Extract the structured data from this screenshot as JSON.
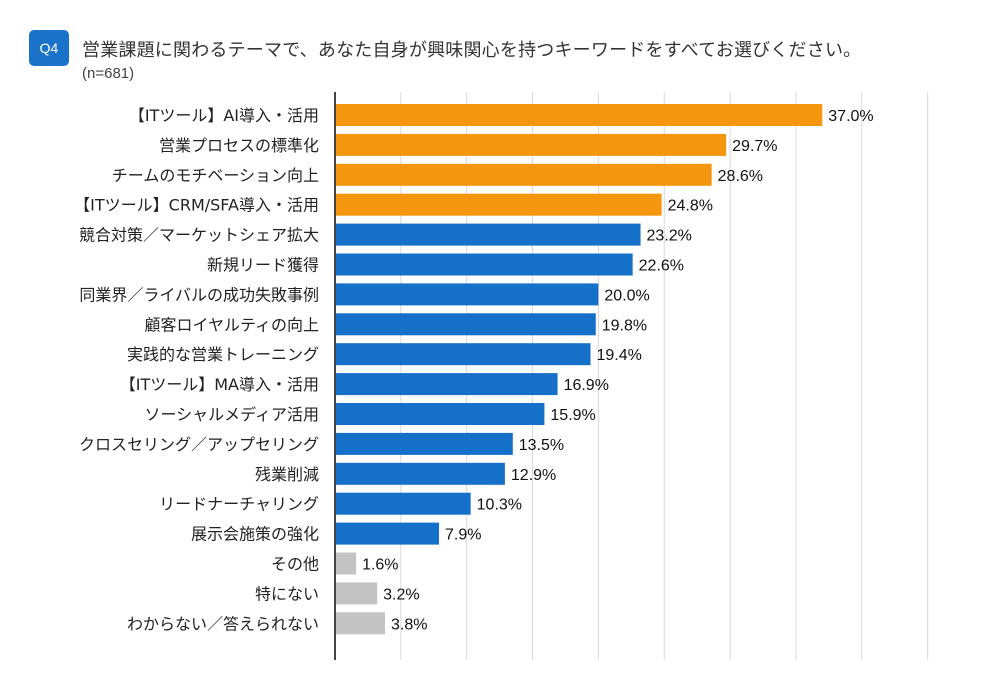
{
  "header": {
    "badge": "Q4",
    "question": "営業課題に関わるテーマで、あなた自身が興味関心を持つキーワードをすべてお選びください。",
    "sample_size": "(n=681)"
  },
  "colors": {
    "badge": "#1a73c9",
    "highlight": "#f5960f",
    "primary": "#1470c8",
    "other": "#c3c3c3",
    "grid": "#d8d8d8",
    "axis": "#444444"
  },
  "chart_data": {
    "type": "bar",
    "orientation": "horizontal",
    "title": "営業課題に関わるテーマで、あなた自身が興味関心を持つキーワードをすべてお選びください。",
    "xlabel": "",
    "ylabel": "",
    "xlim": [
      0,
      45
    ],
    "grid": true,
    "unit": "%",
    "categories": [
      "【ITツール】AI導入・活用",
      "営業プロセスの標準化",
      "チームのモチベーション向上",
      "【ITツール】CRM/SFA導入・活用",
      "競合対策／マーケットシェア拡大",
      "新規リード獲得",
      "同業界／ライバルの成功失敗事例",
      "顧客ロイヤルティの向上",
      "実践的な営業トレーニング",
      "【ITツール】MA導入・活用",
      "ソーシャルメディア活用",
      "クロスセリング／アップセリング",
      "残業削減",
      "リードナーチャリング",
      "展示会施策の強化",
      "その他",
      "特にない",
      "わからない／答えられない"
    ],
    "values": [
      37.0,
      29.7,
      28.6,
      24.8,
      23.2,
      22.6,
      20.0,
      19.8,
      19.4,
      16.9,
      15.9,
      13.5,
      12.9,
      10.3,
      7.9,
      1.6,
      3.2,
      3.8
    ],
    "value_labels": [
      "37.0%",
      "29.7%",
      "28.6%",
      "24.8%",
      "23.2%",
      "22.6%",
      "20.0%",
      "19.8%",
      "19.4%",
      "16.9%",
      "15.9%",
      "13.5%",
      "12.9%",
      "10.3%",
      "7.9%",
      "1.6%",
      "3.2%",
      "3.8%"
    ],
    "bar_groups": [
      "highlight",
      "highlight",
      "highlight",
      "highlight",
      "primary",
      "primary",
      "primary",
      "primary",
      "primary",
      "primary",
      "primary",
      "primary",
      "primary",
      "primary",
      "primary",
      "other",
      "other",
      "other"
    ]
  }
}
